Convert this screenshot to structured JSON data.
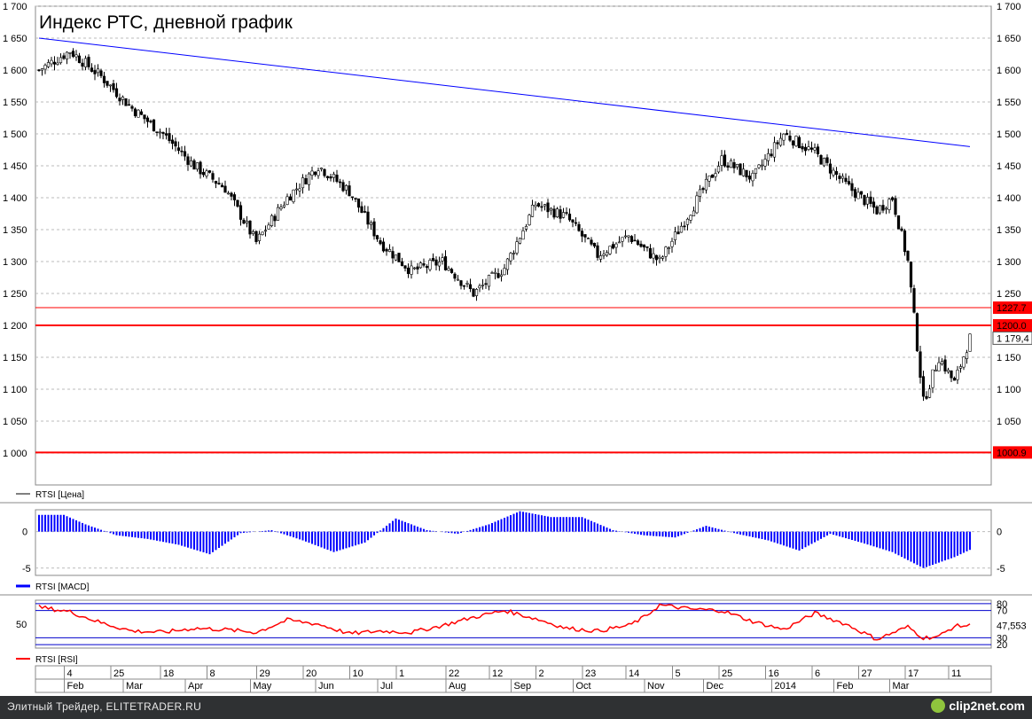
{
  "chart_data": [
    {
      "type": "candlestick",
      "title": "Индекс РТС, дневной график",
      "legend": "RTSI [Цена]",
      "ylim": [
        950,
        1700
      ],
      "y_ticks": [
        "1 000",
        "1 050",
        "1 100",
        "1 150",
        "1 200",
        "1 250",
        "1 300",
        "1 350",
        "1 400",
        "1 450",
        "1 500",
        "1 550",
        "1 600",
        "1 650",
        "1 700"
      ],
      "y_tick_values": [
        1000,
        1050,
        1100,
        1150,
        1200,
        1250,
        1300,
        1350,
        1400,
        1450,
        1500,
        1550,
        1600,
        1650,
        1700
      ],
      "price_anchors": {
        "index": [
          0,
          10,
          20,
          30,
          40,
          50,
          60,
          70,
          80,
          90,
          100,
          110,
          120,
          130,
          140,
          150,
          160,
          170,
          180,
          190,
          200,
          210,
          220,
          230,
          240,
          250,
          260,
          270,
          275,
          280,
          285,
          290,
          295,
          300
        ],
        "close": [
          1600,
          1630,
          1590,
          1540,
          1500,
          1450,
          1415,
          1330,
          1400,
          1450,
          1410,
          1330,
          1285,
          1300,
          1250,
          1290,
          1390,
          1370,
          1310,
          1340,
          1300,
          1380,
          1460,
          1430,
          1500,
          1470,
          1420,
          1380,
          1400,
          1300,
          1080,
          1150,
          1110,
          1180
        ]
      },
      "trend_line": {
        "from": [
          0,
          1650
        ],
        "to": [
          300,
          1480
        ],
        "color": "#0000ff"
      },
      "levels": [
        {
          "value": 1227.7,
          "label": "1227.7",
          "color": "#ff0000"
        },
        {
          "value": 1200.0,
          "label": "1200.0",
          "color": "#ff0000"
        },
        {
          "value": 1000.9,
          "label": "1000.9",
          "color": "#ff0000"
        }
      ],
      "last_value_label": "1 179,4"
    },
    {
      "type": "bar",
      "legend": "RTSI [MACD]",
      "ylim": [
        -6,
        3
      ],
      "y_ticks": [
        "0",
        "-5"
      ],
      "y_tick_values": [
        0,
        -5
      ],
      "color": "#0000ff",
      "macd_anchors": {
        "index": [
          0,
          8,
          15,
          25,
          35,
          45,
          55,
          65,
          75,
          85,
          95,
          105,
          115,
          125,
          135,
          145,
          155,
          165,
          175,
          185,
          195,
          205,
          215,
          225,
          235,
          245,
          255,
          265,
          275,
          285,
          295,
          300
        ],
        "value": [
          2.3,
          2.3,
          1.0,
          -0.5,
          -1.0,
          -1.8,
          -3.1,
          -0.2,
          0.2,
          -1.2,
          -2.8,
          -1.5,
          1.8,
          0.2,
          -0.3,
          1.0,
          2.8,
          2.0,
          2.0,
          0.2,
          -0.5,
          -0.8,
          0.8,
          -0.3,
          -1.2,
          -2.6,
          -0.3,
          -1.5,
          -2.8,
          -5.0,
          -3.5,
          -2.5
        ]
      }
    },
    {
      "type": "line",
      "legend": "RTSI [RSI]",
      "ylim": [
        15,
        85
      ],
      "y_ticks": [
        "50"
      ],
      "y_tick_values": [
        50
      ],
      "levels": [
        {
          "value": 80,
          "label": "80"
        },
        {
          "value": 70,
          "label": "70"
        },
        {
          "value": 30,
          "label": "30"
        },
        {
          "value": 20,
          "label": "20"
        }
      ],
      "last_value_label": "47,553",
      "color": "#ff0000",
      "rsi_anchors": {
        "index": [
          0,
          10,
          20,
          30,
          40,
          50,
          60,
          70,
          80,
          90,
          100,
          110,
          120,
          130,
          140,
          150,
          160,
          170,
          180,
          190,
          195,
          200,
          210,
          220,
          230,
          240,
          250,
          260,
          270,
          280,
          285,
          290,
          295,
          300
        ],
        "value": [
          75,
          68,
          52,
          40,
          38,
          44,
          42,
          38,
          56,
          50,
          36,
          40,
          38,
          48,
          60,
          70,
          58,
          44,
          40,
          48,
          60,
          78,
          72,
          70,
          54,
          42,
          66,
          50,
          28,
          46,
          30,
          32,
          47,
          48
        ]
      }
    }
  ],
  "time_axis": {
    "day_labels": [
      "4",
      "25",
      "18",
      "8",
      "29",
      "20",
      "10",
      "1",
      "22",
      "12",
      "2",
      "23",
      "14",
      "5",
      "25",
      "16",
      "6",
      "27",
      "17",
      "11"
    ],
    "day_index": [
      9,
      24,
      40,
      55,
      71,
      86,
      101,
      116,
      132,
      146,
      161,
      176,
      190,
      205,
      220,
      235,
      250,
      265,
      280,
      294
    ],
    "month_labels": [
      "Feb",
      "Mar",
      "Apr",
      "May",
      "Jun",
      "Jul",
      "Aug",
      "Sep",
      "Oct",
      "Nov",
      "Dec",
      "2014",
      "Feb",
      "Mar"
    ],
    "month_index": [
      9,
      28,
      48,
      69,
      90,
      110,
      132,
      153,
      173,
      196,
      215,
      237,
      257,
      275
    ]
  },
  "footer": {
    "left_text": "Элитный Трейдер, ELITETRADER.RU",
    "right_text": "clip2net.com"
  }
}
